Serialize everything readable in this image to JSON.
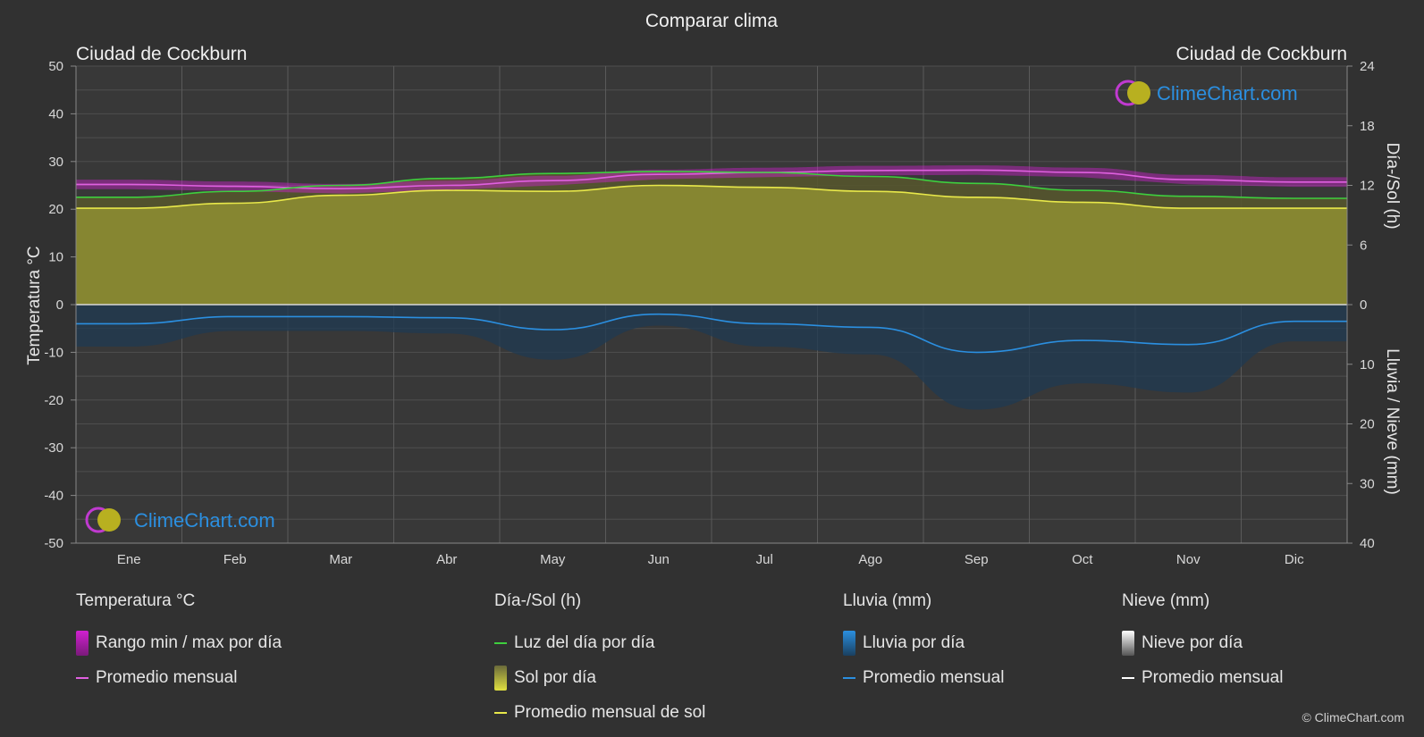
{
  "page": {
    "title": "Comparar clima",
    "location_left": "Ciudad de Cockburn",
    "location_right": "Ciudad de Cockburn",
    "watermark": "ClimeChart.com",
    "copyright": "© ClimeChart.com"
  },
  "chart_data": {
    "type": "line",
    "title": "Comparar clima",
    "categories": [
      "Ene",
      "Feb",
      "Mar",
      "Abr",
      "May",
      "Jun",
      "Jul",
      "Ago",
      "Sep",
      "Oct",
      "Nov",
      "Dic"
    ],
    "axes": {
      "left": {
        "label": "Temperatura °C",
        "range": [
          -50,
          50
        ],
        "ticks": [
          50,
          40,
          30,
          20,
          10,
          0,
          -10,
          -20,
          -30,
          -40,
          -50
        ]
      },
      "right_top": {
        "label": "Día-/Sol (h)",
        "range": [
          0,
          24
        ],
        "ticks": [
          24,
          18,
          12,
          6,
          0
        ]
      },
      "right_bottom": {
        "label": "Lluvia / Nieve (mm)",
        "range": [
          0,
          40
        ],
        "ticks": [
          0,
          10,
          20,
          30,
          40
        ]
      }
    },
    "grid": true,
    "series": [
      {
        "name": "Promedio mensual",
        "group": "Temperatura °C",
        "axis": "left",
        "color": "#e060e0",
        "values": [
          25.2,
          24.8,
          24.3,
          25.0,
          26.0,
          27.3,
          27.7,
          28.1,
          28.2,
          27.7,
          26.2,
          25.7
        ]
      },
      {
        "name": "Luz del día por día",
        "group": "Día-/Sol (h)",
        "axis": "right_top",
        "color": "#3ecf3e",
        "values": [
          10.8,
          11.4,
          12.0,
          12.7,
          13.2,
          13.4,
          13.3,
          12.9,
          12.2,
          11.5,
          10.9,
          10.7
        ]
      },
      {
        "name": "Promedio mensual de sol",
        "group": "Día-/Sol (h)",
        "axis": "right_top",
        "color": "#e8e84a",
        "values": [
          9.7,
          10.2,
          11.0,
          11.5,
          11.4,
          12.0,
          11.8,
          11.4,
          10.8,
          10.3,
          9.7,
          9.7
        ]
      },
      {
        "name": "Promedio mensual",
        "group": "Lluvia (mm)",
        "axis": "right_bottom",
        "color": "#2b8fe0",
        "values": [
          3.2,
          2.0,
          2.0,
          2.2,
          4.2,
          1.6,
          3.2,
          3.8,
          8.0,
          6.0,
          6.7,
          2.8
        ]
      }
    ],
    "temp_range_band": {
      "name": "Rango min / max por día",
      "color": "#cc22cc"
    }
  },
  "legend": {
    "groups": [
      {
        "title": "Temperatura °C",
        "items": [
          {
            "label": "Rango min / max por día",
            "kind": "box",
            "color": "#d020d0"
          },
          {
            "label": "Promedio mensual",
            "kind": "line",
            "color": "#e060e0"
          }
        ]
      },
      {
        "title": "Día-/Sol (h)",
        "items": [
          {
            "label": "Luz del día por día",
            "kind": "line",
            "color": "#3ecf3e"
          },
          {
            "label": "Sol por día",
            "kind": "box",
            "color": "#c8c830"
          },
          {
            "label": "Promedio mensual de sol",
            "kind": "line",
            "color": "#e8e84a"
          }
        ]
      },
      {
        "title": "Lluvia (mm)",
        "items": [
          {
            "label": "Lluvia por día",
            "kind": "box",
            "color": "#2b8fe0"
          },
          {
            "label": "Promedio mensual",
            "kind": "line",
            "color": "#2b8fe0"
          }
        ]
      },
      {
        "title": "Nieve (mm)",
        "items": [
          {
            "label": "Nieve por día",
            "kind": "box",
            "color": "#cfcfcf"
          },
          {
            "label": "Promedio mensual",
            "kind": "line",
            "color": "#ffffff"
          }
        ]
      }
    ]
  }
}
